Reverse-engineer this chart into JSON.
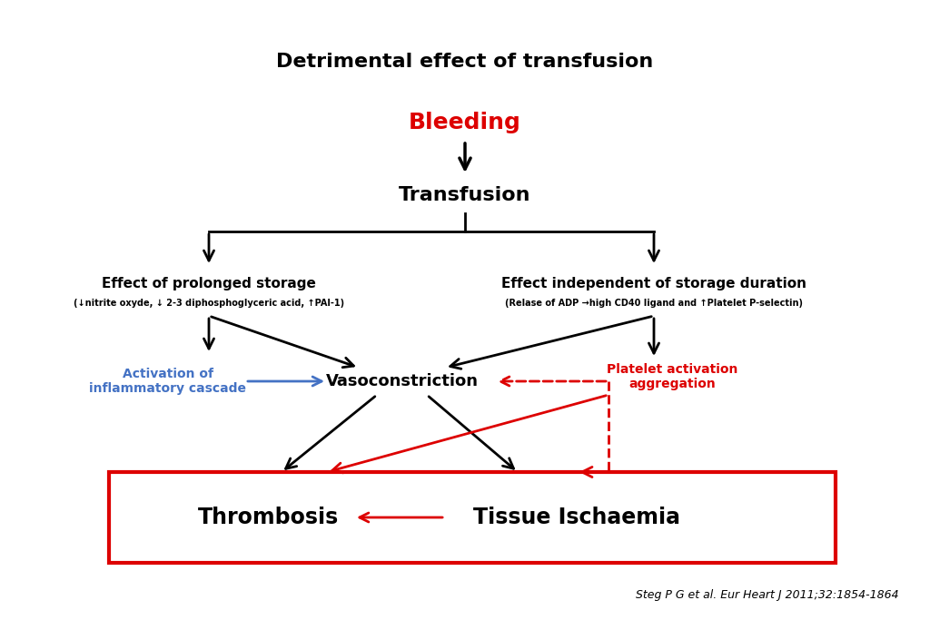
{
  "title": "Detrimental effect of transfusion",
  "bleeding_text": "Bleeding",
  "transfusion_text": "Transfusion",
  "left_box_title": "Effect of prolonged storage",
  "left_box_subtitle": "(↓nitrite oxyde, ↓ 2-3 diphosphoglyceric acid, ↑PAI-1)",
  "right_box_title": "Effect independent of storage duration",
  "right_box_subtitle": "(Relase of ADP →high CD40 ligand and ↑Platelet P-selectin)",
  "inflammatory_text": "Activation of\ninflammatory cascade",
  "vasoconstriction_text": "Vasoconstriction",
  "platelet_text": "Platelet activation\naggregation",
  "thrombosis_text": "Thrombosis",
  "ischaemia_text": "Tissue Ischaemia",
  "citation": "Steg P G et al. Eur Heart J 2011;32:1854-1864",
  "bg_color": "#ffffff",
  "black": "#000000",
  "red": "#dd0000",
  "blue": "#4472c4"
}
